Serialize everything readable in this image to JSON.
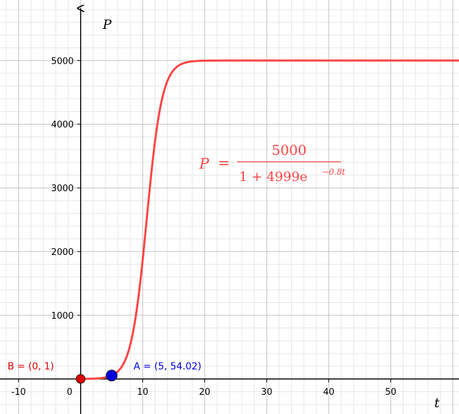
{
  "chart_data": {
    "type": "line",
    "xlabel": "t",
    "ylabel": "P",
    "xlim": [
      -13,
      61
    ],
    "ylim": [
      -550,
      5950
    ],
    "grid": true,
    "x_ticks": [
      -10,
      0,
      10,
      20,
      30,
      40,
      50
    ],
    "x_tick_labels": [
      "-10",
      "0",
      "10",
      "20",
      "30",
      "40",
      "50"
    ],
    "y_ticks": [
      1000,
      2000,
      3000,
      4000,
      5000
    ],
    "y_tick_labels": [
      "1000",
      "2000",
      "3000",
      "4000",
      "5000"
    ],
    "series": [
      {
        "formula": {
          "lhs": "P",
          "numerator": "5000",
          "denominator_base": "1 + 4999e",
          "exponent": "−0.8t"
        },
        "color": "#ff4444",
        "function": {
          "K": 5000,
          "A": 4999,
          "r": 0.8
        }
      }
    ],
    "points": [
      {
        "label": "B = (0, 1)",
        "x": 0,
        "y": 1,
        "color": "#dd0000",
        "label_color": "#dd0000"
      },
      {
        "label": "A = (5, 54.02)",
        "x": 5,
        "y": 54.02,
        "color": "#0000dd",
        "label_color": "#0000dd"
      }
    ]
  }
}
